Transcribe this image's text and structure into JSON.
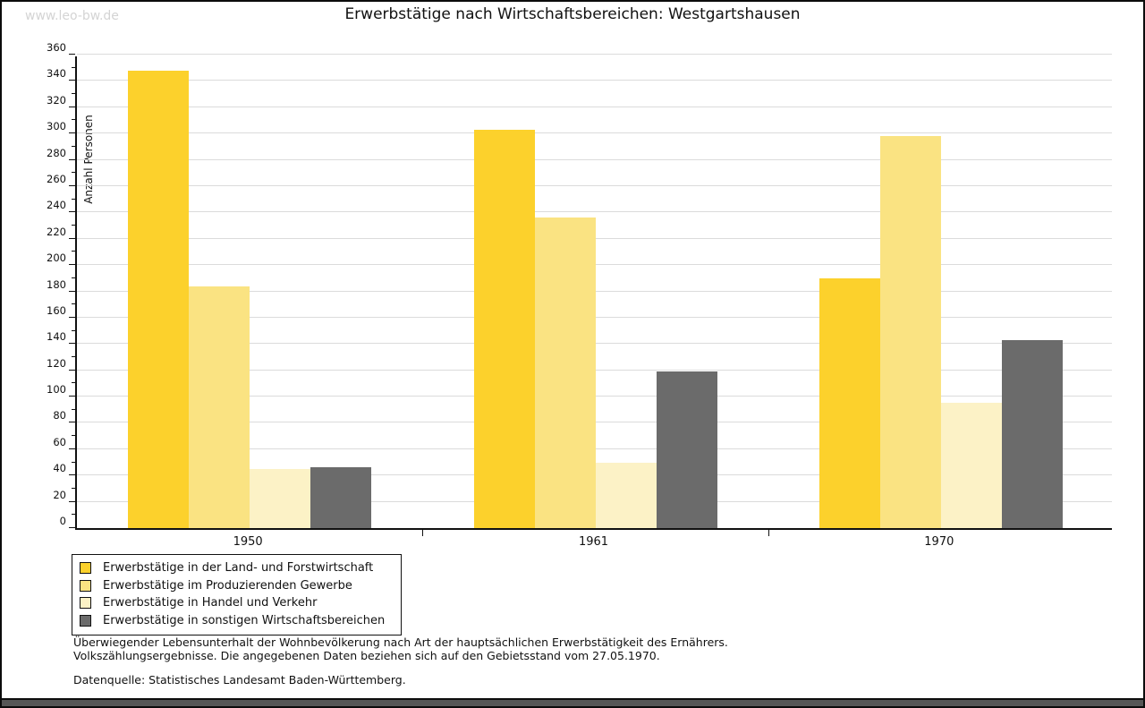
{
  "page": {
    "watermark": "www.leo-bw.de",
    "title": "Erwerbstätige nach Wirtschaftsbereichen: Westgartshausen"
  },
  "chart_data": {
    "type": "bar",
    "title": "Erwerbstätige nach Wirtschaftsbereichen: Westgartshausen",
    "xlabel": "",
    "ylabel": "Anzahl Personen",
    "ylim": [
      0,
      360
    ],
    "ytick_step": 20,
    "yminor_step": 10,
    "grid": true,
    "legend_position": "bottom-left",
    "categories": [
      "1950",
      "1961",
      "1970"
    ],
    "series": [
      {
        "name": "Erwerbstätige in der Land- und Forstwirtschaft",
        "color": "#fcd12c",
        "values": [
          348,
          303,
          190
        ]
      },
      {
        "name": "Erwerbstätige im Produzierenden Gewerbe",
        "color": "#fae382",
        "values": [
          184,
          236,
          298
        ]
      },
      {
        "name": "Erwerbstätige in Handel und Verkehr",
        "color": "#fcf2c6",
        "values": [
          45,
          50,
          95
        ]
      },
      {
        "name": "Erwerbstätige in sonstigen Wirtschaftsbereichen",
        "color": "#6b6b6b",
        "values": [
          46,
          119,
          143
        ]
      }
    ],
    "colors": {
      "grid": "#dbdbdb",
      "axis": "#111111",
      "watermark": "#d4d4d4",
      "footer_strip": "#565656"
    }
  },
  "footnotes": {
    "line1": "Überwiegender Lebensunterhalt der Wohnbevölkerung nach Art der hauptsächlichen Erwerbstätigkeit des Ernährers.",
    "line2": "Volkszählungsergebnisse. Die angegebenen Daten beziehen sich auf den Gebietsstand vom 27.05.1970.",
    "source": "Datenquelle: Statistisches Landesamt Baden-Württemberg."
  }
}
